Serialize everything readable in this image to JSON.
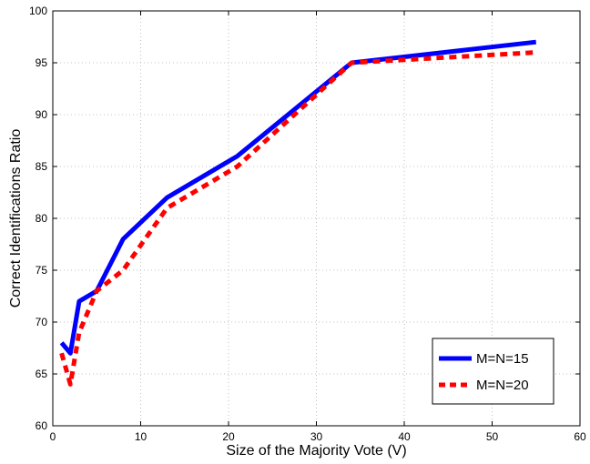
{
  "chart_data": {
    "type": "line",
    "title": "",
    "xlabel": "Size of the Majority Vote (V)",
    "ylabel": "Correct Identifications Ratio",
    "xlim": [
      0,
      60
    ],
    "ylim": [
      60,
      100
    ],
    "xticks": [
      0,
      10,
      20,
      30,
      40,
      50,
      60
    ],
    "yticks": [
      60,
      65,
      70,
      75,
      80,
      85,
      90,
      95,
      100
    ],
    "grid": true,
    "legend_position": "bottom-right",
    "series": [
      {
        "name": "M=N=15",
        "color": "#0000ff",
        "line_style": "solid",
        "x": [
          1,
          2,
          3,
          5,
          8,
          13,
          21,
          34,
          55
        ],
        "y": [
          68,
          67,
          72,
          73,
          78,
          82,
          86,
          95,
          97
        ]
      },
      {
        "name": "M=N=20",
        "color": "#ff0000",
        "line_style": "dashed",
        "x": [
          1,
          2,
          3,
          5,
          8,
          13,
          21,
          34,
          55
        ],
        "y": [
          67,
          64,
          69,
          73,
          75,
          81,
          85,
          95,
          96
        ]
      }
    ]
  }
}
